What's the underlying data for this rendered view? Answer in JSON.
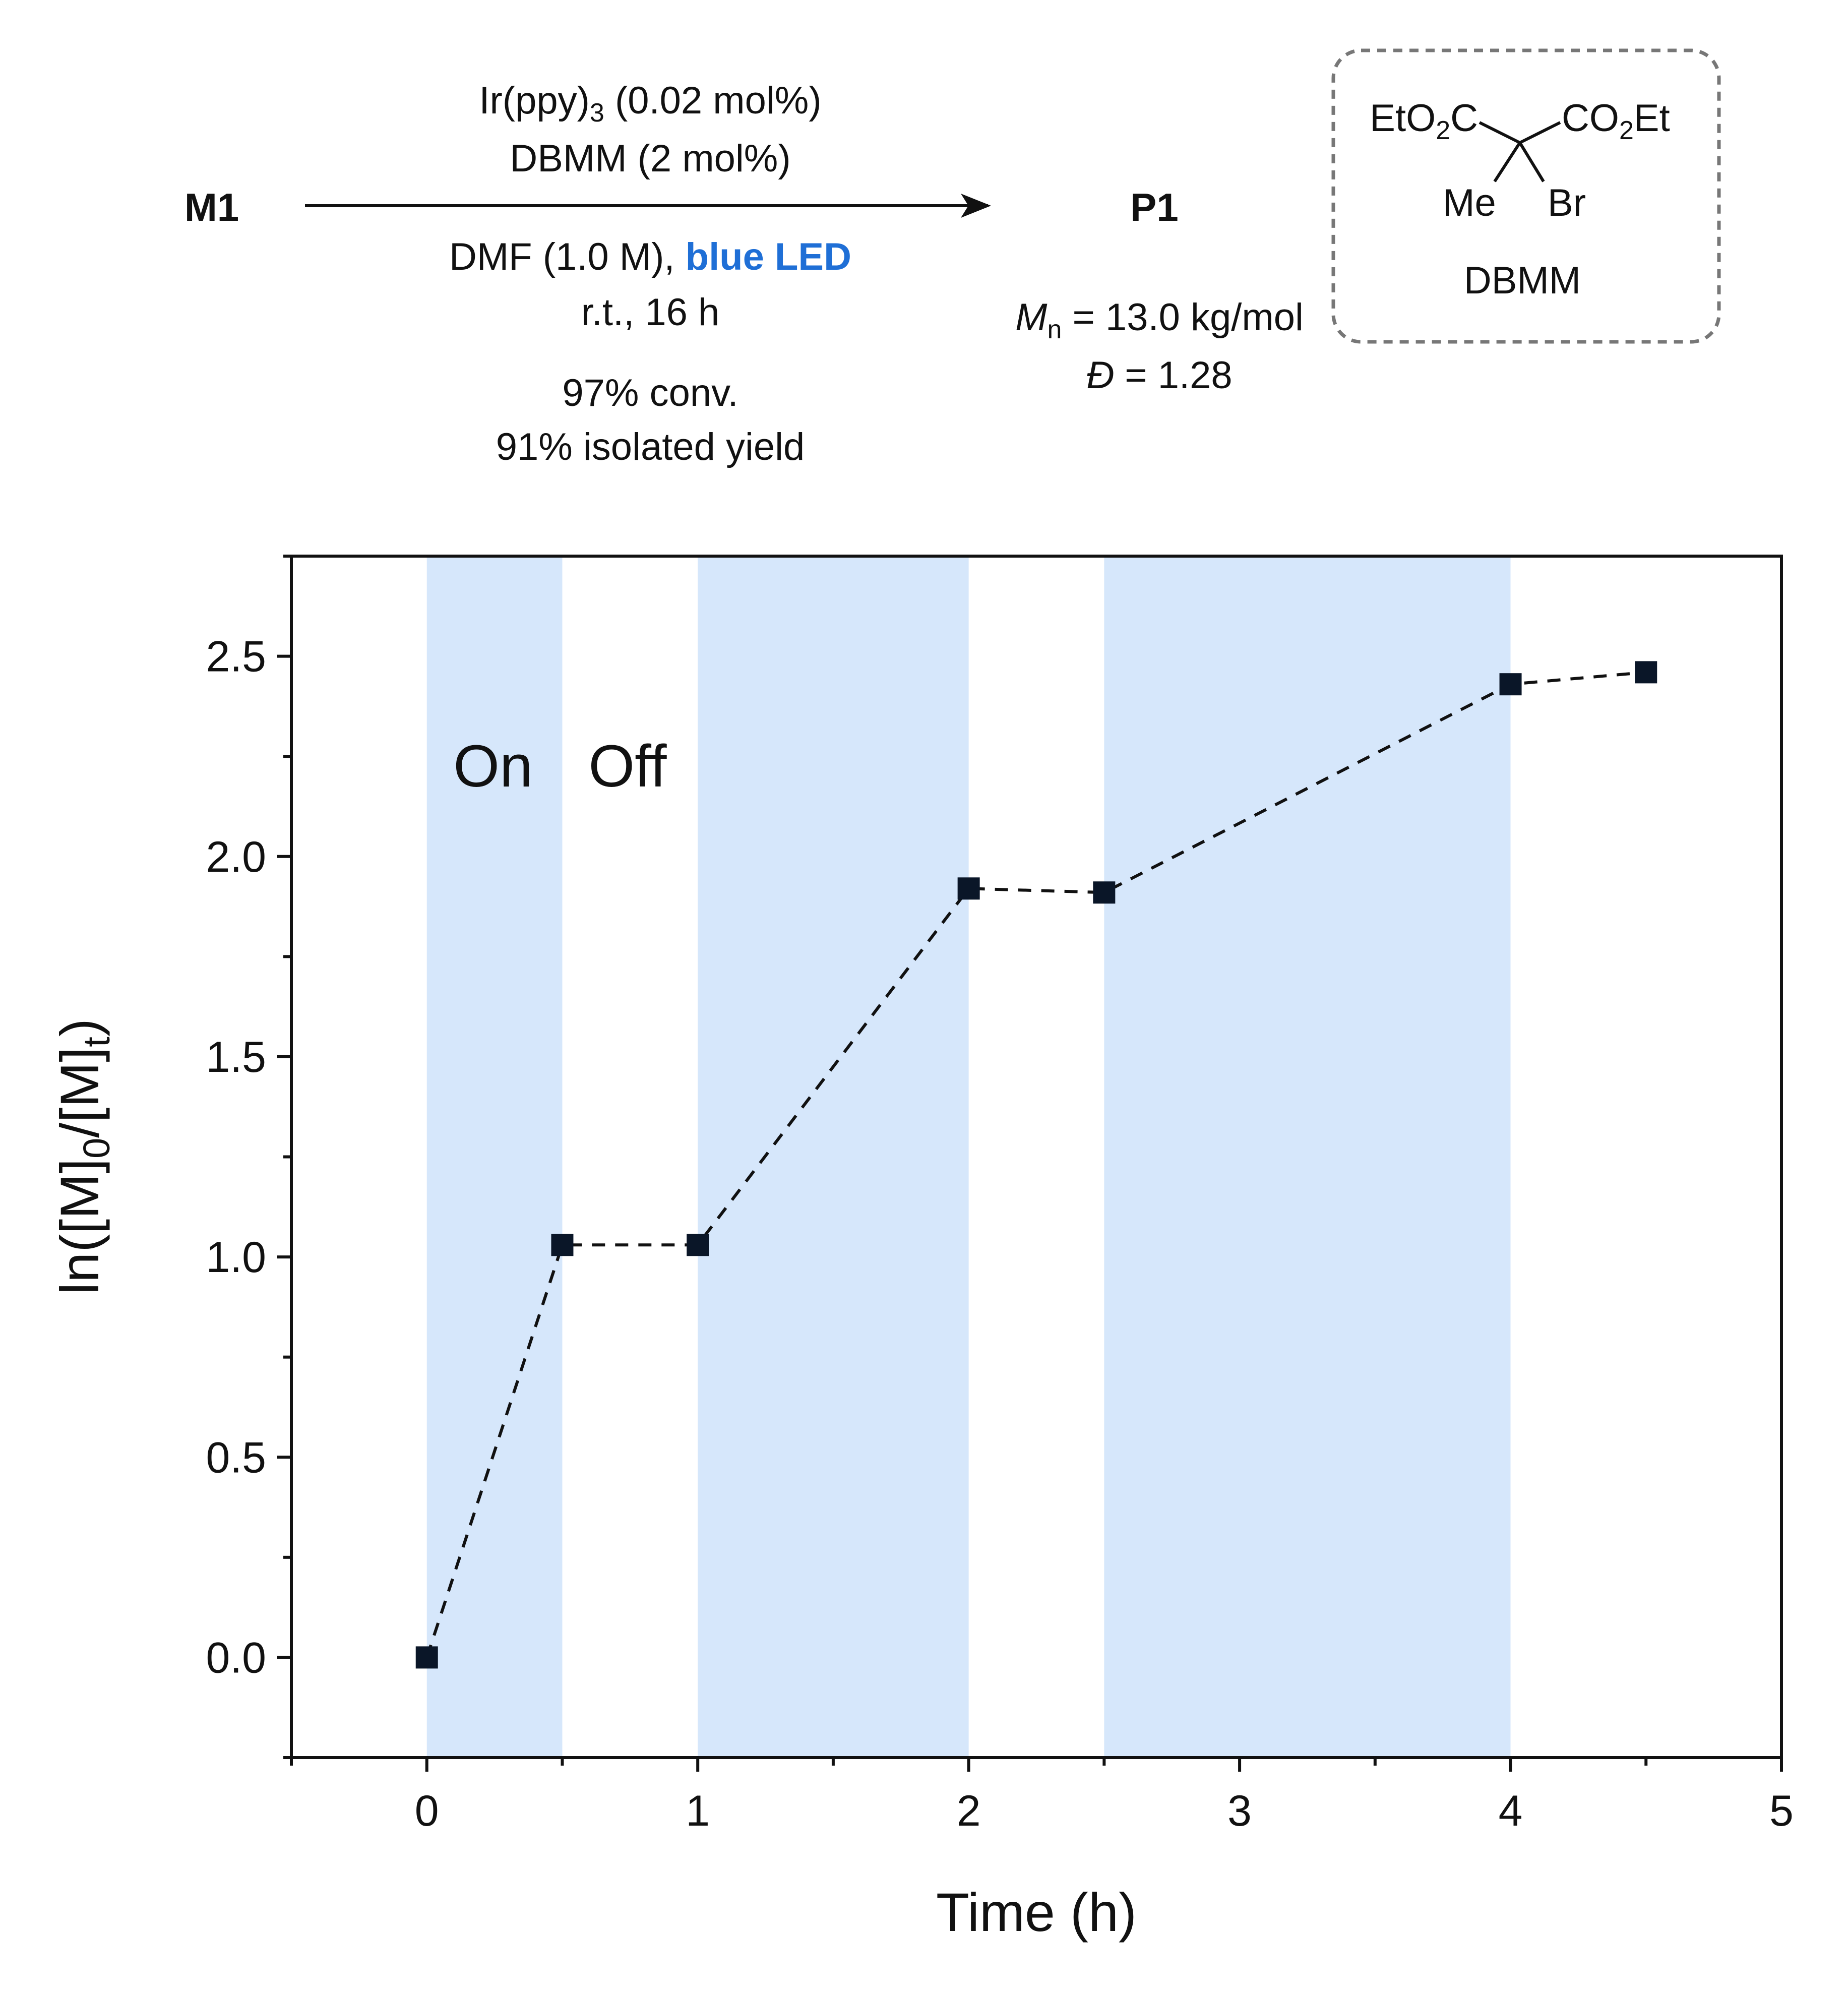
{
  "scheme": {
    "reactant": "M1",
    "product": "P1",
    "conditions_above": {
      "catalyst_prefix": "Ir(ppy)",
      "catalyst_subscript": "3",
      "catalyst_suffix": " (0.02 mol%)",
      "initiator": "DBMM (2 mol%)"
    },
    "conditions_below": {
      "solvent": "DMF (1.0 M), ",
      "light": "blue LED",
      "temp_time": "r.t., 16 h",
      "conversion": "97% conv.",
      "yield": "91% isolated yield"
    },
    "product_props": {
      "mn_symbol": "M",
      "mn_subscript": "n",
      "mn_value": " = 13.0 kg/mol",
      "dispersity_symbol": "Đ",
      "dispersity_value": " = 1.28"
    },
    "dbmm_structure": {
      "left_ester_a": "EtO",
      "left_ester_sub": "2",
      "left_ester_b": "C",
      "right_ester_a": "CO",
      "right_ester_sub": "2",
      "right_ester_b": "Et",
      "methyl": "Me",
      "bromo": "Br",
      "name": "DBMM"
    }
  },
  "colors": {
    "light_on_band": "#d6e7fb",
    "blue_led_text": "#1f6fd6",
    "marker": "#0a1628",
    "axis": "#111111",
    "dash_box": "#777777"
  },
  "chart_data": {
    "type": "scatter",
    "xlabel": "Time (h)",
    "ylabel": {
      "prefix": "ln([M]",
      "sub1": "0",
      "middle": "/[M]",
      "sub2": "t",
      "suffix": ")"
    },
    "xlim": [
      -0.5,
      5
    ],
    "ylim": [
      -0.25,
      2.75
    ],
    "x_ticks": [
      0,
      1,
      2,
      3,
      4,
      5
    ],
    "y_ticks": [
      0.0,
      0.5,
      1.0,
      1.5,
      2.0,
      2.5
    ],
    "x_minor_step": 0.5,
    "y_minor_step": 0.25,
    "series": [
      {
        "name": "ln([M]0/[M]t)",
        "marker": "square",
        "line": "dashed",
        "x": [
          0,
          0.5,
          1,
          2,
          2.5,
          4,
          4.5
        ],
        "y": [
          0.0,
          1.03,
          1.03,
          1.92,
          1.91,
          2.43,
          2.46
        ]
      }
    ],
    "light_on_intervals": [
      [
        0,
        0.5
      ],
      [
        1,
        2
      ],
      [
        2.5,
        4
      ]
    ],
    "annotations": {
      "on": "On",
      "off": "Off"
    }
  }
}
